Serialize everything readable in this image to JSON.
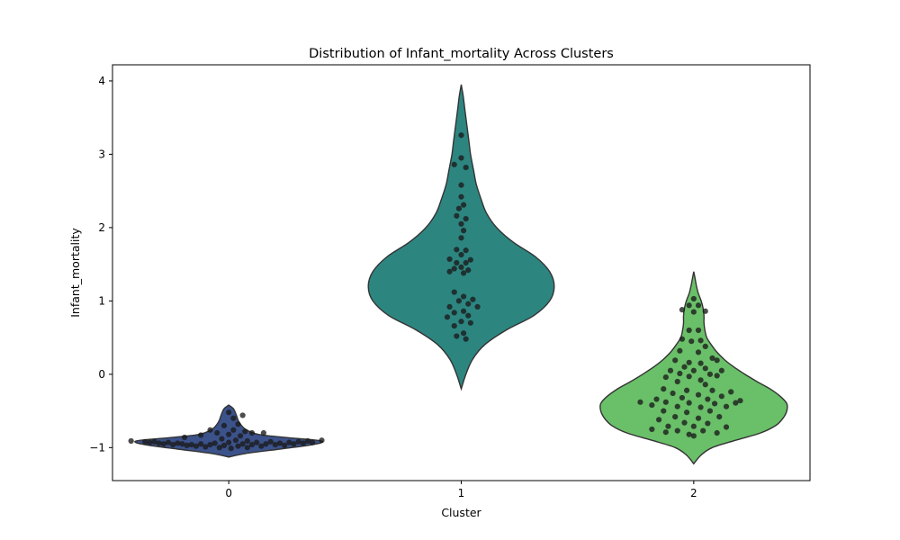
{
  "chart_data": {
    "type": "violin",
    "title": "Distribution of Infant_mortality Across Clusters",
    "xlabel": "Cluster",
    "ylabel": "Infant_mortality",
    "categories": [
      "0",
      "1",
      "2"
    ],
    "ylim": [
      -1.45,
      4.22
    ],
    "yticks": [
      -1,
      0,
      1,
      2,
      3,
      4
    ],
    "ytick_labels": [
      "−1",
      "0",
      "1",
      "2",
      "3",
      "4"
    ],
    "grid": false,
    "legend": "none",
    "colors": [
      "#3b528b",
      "#2d8580",
      "#6abf69"
    ],
    "point_color": "#1a1a1a",
    "violins": [
      {
        "category": "0",
        "color": "#3b528b",
        "profile": [
          [
            -1.13,
            0.0
          ],
          [
            -1.08,
            0.18
          ],
          [
            -1.02,
            0.55
          ],
          [
            -0.97,
            0.85
          ],
          [
            -0.93,
            1.0
          ],
          [
            -0.9,
            0.95
          ],
          [
            -0.86,
            0.6
          ],
          [
            -0.82,
            0.32
          ],
          [
            -0.75,
            0.18
          ],
          [
            -0.65,
            0.11
          ],
          [
            -0.55,
            0.08
          ],
          [
            -0.47,
            0.05
          ],
          [
            -0.42,
            0.0
          ]
        ],
        "points": [
          [
            -0.42,
            -0.91
          ],
          [
            -0.36,
            -0.92
          ],
          [
            -0.34,
            -0.93
          ],
          [
            -0.32,
            -0.92
          ],
          [
            -0.3,
            -0.94
          ],
          [
            -0.28,
            -0.95
          ],
          [
            -0.26,
            -0.93
          ],
          [
            -0.24,
            -0.96
          ],
          [
            -0.22,
            -0.94
          ],
          [
            -0.2,
            -0.95
          ],
          [
            -0.18,
            -0.97
          ],
          [
            -0.19,
            -0.86
          ],
          [
            -0.16,
            -0.96
          ],
          [
            -0.14,
            -0.98
          ],
          [
            -0.12,
            -0.95
          ],
          [
            -0.12,
            -0.83
          ],
          [
            -0.1,
            -0.99
          ],
          [
            -0.08,
            -0.96
          ],
          [
            -0.08,
            -0.76
          ],
          [
            -0.06,
            -0.94
          ],
          [
            -0.05,
            -0.8
          ],
          [
            -0.04,
            -1.0
          ],
          [
            -0.03,
            -0.88
          ],
          [
            -0.02,
            -0.97
          ],
          [
            -0.02,
            -0.7
          ],
          [
            0.0,
            -0.93
          ],
          [
            0.0,
            -0.82
          ],
          [
            0.0,
            -0.52
          ],
          [
            0.01,
            -1.01
          ],
          [
            0.02,
            -0.76
          ],
          [
            0.02,
            -0.6
          ],
          [
            0.03,
            -0.9
          ],
          [
            0.04,
            -0.98
          ],
          [
            0.04,
            -0.68
          ],
          [
            0.05,
            -0.84
          ],
          [
            0.06,
            -0.95
          ],
          [
            0.06,
            -0.56
          ],
          [
            0.07,
            -0.78
          ],
          [
            0.08,
            -1.0
          ],
          [
            0.08,
            -0.91
          ],
          [
            0.1,
            -0.96
          ],
          [
            0.1,
            -0.8
          ],
          [
            0.12,
            -0.93
          ],
          [
            0.14,
            -0.98
          ],
          [
            0.15,
            -0.8
          ],
          [
            0.16,
            -0.95
          ],
          [
            0.18,
            -0.92
          ],
          [
            0.2,
            -0.96
          ],
          [
            0.22,
            -0.94
          ],
          [
            0.24,
            -0.97
          ],
          [
            0.26,
            -0.93
          ],
          [
            0.28,
            -0.95
          ],
          [
            0.3,
            -0.92
          ],
          [
            0.32,
            -0.94
          ],
          [
            0.34,
            -0.91
          ],
          [
            0.36,
            -0.93
          ],
          [
            0.4,
            -0.9
          ]
        ]
      },
      {
        "category": "1",
        "color": "#2d8580",
        "profile": [
          [
            -0.2,
            0.0
          ],
          [
            0.0,
            0.05
          ],
          [
            0.2,
            0.12
          ],
          [
            0.4,
            0.25
          ],
          [
            0.6,
            0.48
          ],
          [
            0.8,
            0.78
          ],
          [
            1.0,
            0.95
          ],
          [
            1.2,
            1.0
          ],
          [
            1.4,
            0.95
          ],
          [
            1.6,
            0.8
          ],
          [
            1.8,
            0.56
          ],
          [
            2.0,
            0.38
          ],
          [
            2.2,
            0.27
          ],
          [
            2.4,
            0.21
          ],
          [
            2.6,
            0.16
          ],
          [
            2.8,
            0.13
          ],
          [
            3.0,
            0.1
          ],
          [
            3.2,
            0.08
          ],
          [
            3.4,
            0.06
          ],
          [
            3.6,
            0.04
          ],
          [
            3.8,
            0.02
          ],
          [
            3.95,
            0.0
          ]
        ],
        "points": [
          [
            0.0,
            3.26
          ],
          [
            0.0,
            2.95
          ],
          [
            -0.03,
            2.86
          ],
          [
            0.02,
            2.82
          ],
          [
            0.0,
            2.58
          ],
          [
            0.0,
            2.42
          ],
          [
            0.01,
            2.31
          ],
          [
            -0.01,
            2.26
          ],
          [
            -0.02,
            2.16
          ],
          [
            0.02,
            2.12
          ],
          [
            0.0,
            2.05
          ],
          [
            0.01,
            1.96
          ],
          [
            0.0,
            1.86
          ],
          [
            -0.02,
            1.7
          ],
          [
            0.02,
            1.69
          ],
          [
            0.0,
            1.63
          ],
          [
            -0.05,
            1.57
          ],
          [
            0.04,
            1.56
          ],
          [
            -0.02,
            1.52
          ],
          [
            0.02,
            1.52
          ],
          [
            0.0,
            1.46
          ],
          [
            -0.03,
            1.44
          ],
          [
            0.03,
            1.42
          ],
          [
            -0.05,
            1.4
          ],
          [
            0.01,
            1.38
          ],
          [
            -0.03,
            1.12
          ],
          [
            0.01,
            1.06
          ],
          [
            0.05,
            1.02
          ],
          [
            -0.01,
            1.0
          ],
          [
            0.03,
            0.96
          ],
          [
            -0.05,
            0.92
          ],
          [
            0.07,
            0.92
          ],
          [
            0.01,
            0.86
          ],
          [
            -0.03,
            0.84
          ],
          [
            0.03,
            0.8
          ],
          [
            -0.06,
            0.78
          ],
          [
            0.0,
            0.72
          ],
          [
            0.04,
            0.7
          ],
          [
            -0.03,
            0.66
          ],
          [
            0.01,
            0.56
          ],
          [
            -0.02,
            0.52
          ],
          [
            0.02,
            0.48
          ]
        ]
      },
      {
        "category": "2",
        "color": "#6abf69",
        "profile": [
          [
            -1.22,
            0.0
          ],
          [
            -1.1,
            0.08
          ],
          [
            -1.0,
            0.2
          ],
          [
            -0.9,
            0.45
          ],
          [
            -0.8,
            0.72
          ],
          [
            -0.7,
            0.88
          ],
          [
            -0.6,
            0.96
          ],
          [
            -0.5,
            1.0
          ],
          [
            -0.4,
            1.0
          ],
          [
            -0.3,
            0.93
          ],
          [
            -0.2,
            0.82
          ],
          [
            -0.1,
            0.68
          ],
          [
            0.0,
            0.55
          ],
          [
            0.1,
            0.43
          ],
          [
            0.2,
            0.33
          ],
          [
            0.3,
            0.25
          ],
          [
            0.4,
            0.19
          ],
          [
            0.5,
            0.14
          ],
          [
            0.6,
            0.12
          ],
          [
            0.7,
            0.11
          ],
          [
            0.8,
            0.11
          ],
          [
            0.9,
            0.1
          ],
          [
            1.0,
            0.08
          ],
          [
            1.1,
            0.05
          ],
          [
            1.2,
            0.03
          ],
          [
            1.3,
            0.015
          ],
          [
            1.4,
            0.0
          ]
        ],
        "points": [
          [
            0.0,
            1.03
          ],
          [
            -0.02,
            0.94
          ],
          [
            0.02,
            0.94
          ],
          [
            -0.05,
            0.88
          ],
          [
            0.05,
            0.86
          ],
          [
            0.0,
            0.85
          ],
          [
            -0.02,
            0.6
          ],
          [
            0.02,
            0.6
          ],
          [
            -0.05,
            0.48
          ],
          [
            0.03,
            0.46
          ],
          [
            -0.01,
            0.45
          ],
          [
            0.05,
            0.38
          ],
          [
            -0.06,
            0.32
          ],
          [
            0.02,
            0.3
          ],
          [
            0.08,
            0.22
          ],
          [
            -0.08,
            0.19
          ],
          [
            -0.02,
            0.16
          ],
          [
            0.03,
            0.15
          ],
          [
            0.1,
            0.19
          ],
          [
            -0.04,
            0.1
          ],
          [
            0.05,
            0.08
          ],
          [
            -0.1,
            0.05
          ],
          [
            0.0,
            0.05
          ],
          [
            0.12,
            0.05
          ],
          [
            -0.06,
            0.01
          ],
          [
            0.07,
            0.0
          ],
          [
            -0.02,
            -0.03
          ],
          [
            -0.12,
            -0.04
          ],
          [
            0.1,
            -0.02
          ],
          [
            0.03,
            -0.08
          ],
          [
            -0.07,
            -0.1
          ],
          [
            0.05,
            -0.14
          ],
          [
            -0.13,
            -0.2
          ],
          [
            -0.03,
            -0.22
          ],
          [
            0.08,
            -0.22
          ],
          [
            0.16,
            -0.24
          ],
          [
            -0.09,
            -0.26
          ],
          [
            0.02,
            -0.28
          ],
          [
            0.12,
            -0.3
          ],
          [
            -0.05,
            -0.32
          ],
          [
            -0.16,
            -0.34
          ],
          [
            0.06,
            -0.34
          ],
          [
            0.2,
            -0.36
          ],
          [
            -0.23,
            -0.38
          ],
          [
            -0.12,
            -0.38
          ],
          [
            -0.02,
            -0.39
          ],
          [
            0.09,
            -0.4
          ],
          [
            0.18,
            -0.39
          ],
          [
            -0.18,
            -0.42
          ],
          [
            -0.07,
            -0.44
          ],
          [
            0.03,
            -0.45
          ],
          [
            0.14,
            -0.44
          ],
          [
            -0.13,
            -0.5
          ],
          [
            -0.03,
            -0.52
          ],
          [
            0.07,
            -0.5
          ],
          [
            -0.08,
            -0.58
          ],
          [
            0.02,
            -0.6
          ],
          [
            0.11,
            -0.58
          ],
          [
            -0.15,
            -0.62
          ],
          [
            -0.04,
            -0.66
          ],
          [
            0.06,
            -0.67
          ],
          [
            -0.11,
            -0.71
          ],
          [
            0.0,
            -0.71
          ],
          [
            0.14,
            -0.72
          ],
          [
            -0.18,
            -0.75
          ],
          [
            -0.07,
            -0.77
          ],
          [
            0.04,
            -0.77
          ],
          [
            0.1,
            -0.8
          ],
          [
            -0.12,
            -0.79
          ],
          [
            -0.02,
            -0.82
          ],
          [
            0.0,
            -0.84
          ]
        ]
      }
    ]
  }
}
